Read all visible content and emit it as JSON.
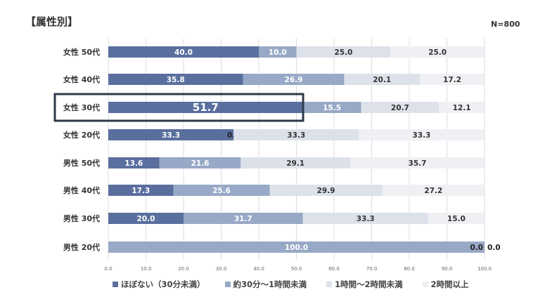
{
  "title": "【属性別】",
  "sample_size": "N=800",
  "highlight_category": "女性 30代",
  "chart_data": {
    "type": "bar",
    "orientation": "horizontal",
    "stacked": true,
    "categories": [
      "女性 50代",
      "女性 40代",
      "女性 30代",
      "女性 20代",
      "男性 50代",
      "男性 40代",
      "男性 30代",
      "男性 20代"
    ],
    "series": [
      {
        "name": "ほぼない（30分未満）",
        "color": "#5a6f9e",
        "values": [
          40.0,
          35.8,
          51.7,
          33.3,
          13.6,
          17.3,
          20.0,
          0.0
        ]
      },
      {
        "name": "約30分～1時間未満",
        "color": "#98a9c7",
        "values": [
          10.0,
          26.9,
          15.5,
          0.0,
          21.6,
          25.6,
          31.7,
          100.0
        ]
      },
      {
        "name": "1時間～2時間未満",
        "color": "#dde2ea",
        "values": [
          25.0,
          20.1,
          20.7,
          33.3,
          29.1,
          29.9,
          33.3,
          0.0
        ]
      },
      {
        "name": "2時間以上",
        "color": "#eef0f3",
        "values": [
          25.0,
          17.2,
          12.1,
          33.3,
          35.7,
          27.2,
          15.0,
          0.0
        ]
      }
    ],
    "xlim": [
      0,
      100
    ],
    "xticks": [
      "0.0",
      "10.0",
      "20.0",
      "30.0",
      "40.0",
      "50.0",
      "60.0",
      "70.0",
      "80.0",
      "90.0",
      "100.0"
    ],
    "grid": true,
    "legend": "bottom"
  }
}
